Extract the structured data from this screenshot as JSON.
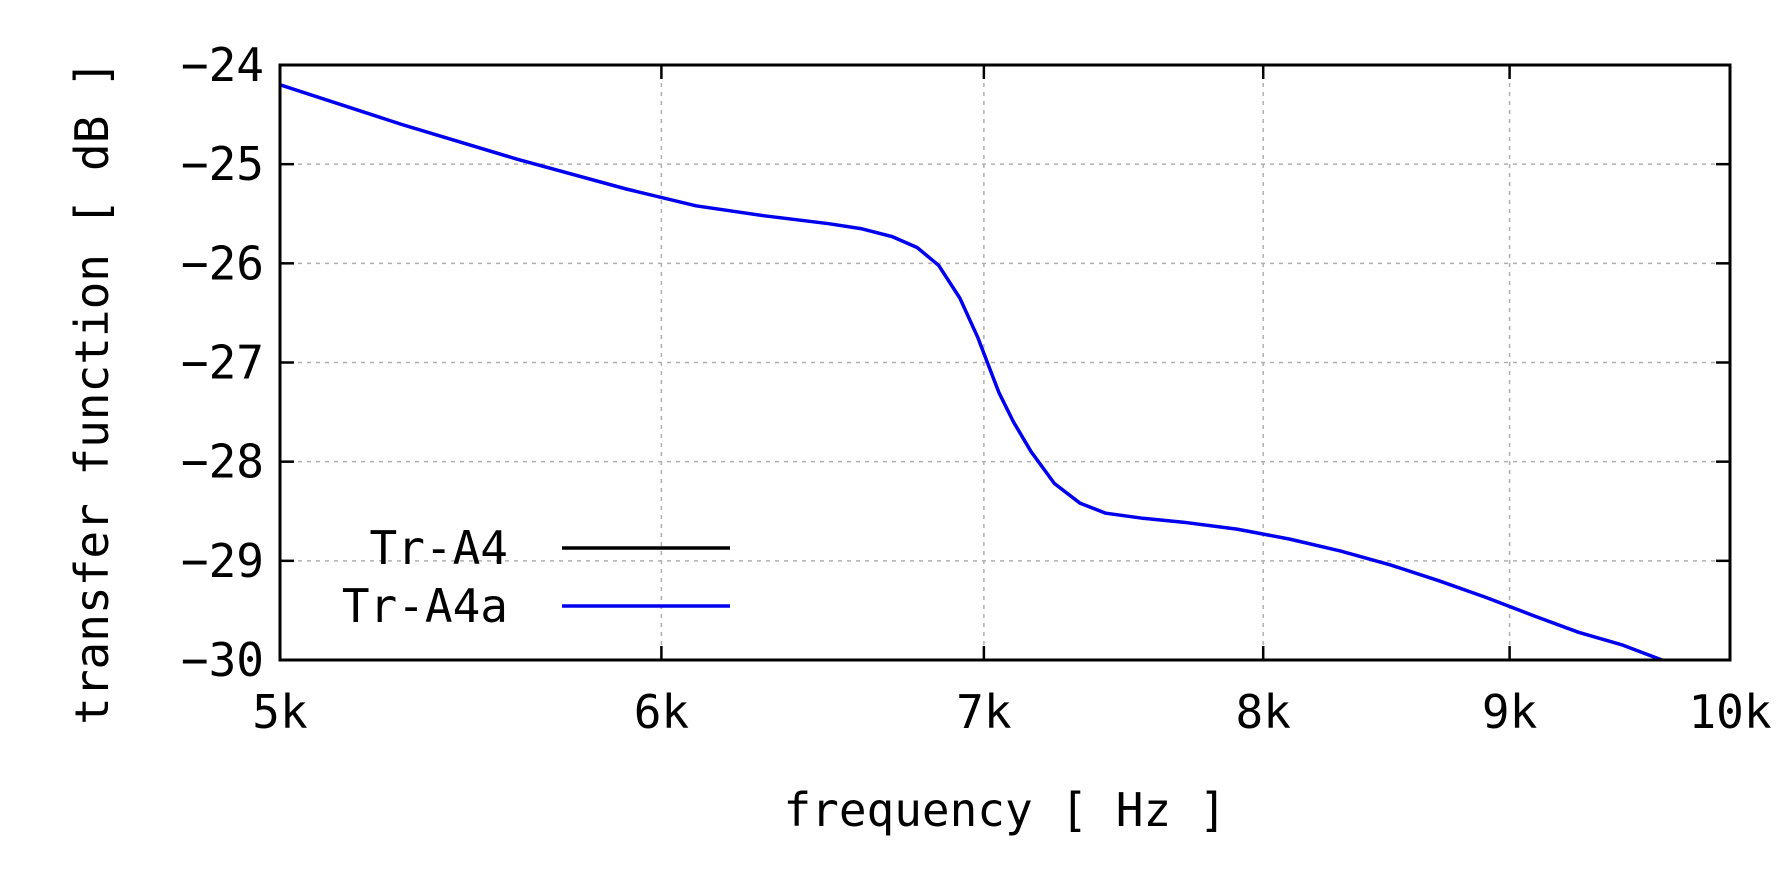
{
  "chart_data": {
    "type": "line",
    "xlabel": "frequency [ Hz ]",
    "ylabel": "transfer function [ dB ]",
    "xlim": [
      5000,
      10000
    ],
    "ylim": [
      -30,
      -24
    ],
    "x_scale": "log",
    "grid": true,
    "legend_placement": "bottom-left",
    "x_ticks": [
      {
        "value": 5000,
        "label": "5k"
      },
      {
        "value": 6000,
        "label": "6k"
      },
      {
        "value": 7000,
        "label": "7k"
      },
      {
        "value": 8000,
        "label": "8k"
      },
      {
        "value": 9000,
        "label": "9k"
      },
      {
        "value": 10000,
        "label": "10k"
      }
    ],
    "y_ticks": [
      {
        "value": -24,
        "label": "−24"
      },
      {
        "value": -25,
        "label": "−25"
      },
      {
        "value": -26,
        "label": "−26"
      },
      {
        "value": -27,
        "label": "−27"
      },
      {
        "value": -28,
        "label": "−28"
      },
      {
        "value": -29,
        "label": "−29"
      },
      {
        "value": -30,
        "label": "−30"
      }
    ],
    "series": [
      {
        "name": "Tr-A4",
        "color": "#000000",
        "x": [],
        "y": []
      },
      {
        "name": "Tr-A4a",
        "color": "#0000ee",
        "x": [
          5000,
          5300,
          5600,
          5900,
          6100,
          6300,
          6500,
          6600,
          6700,
          6780,
          6850,
          6920,
          6980,
          7050,
          7100,
          7160,
          7240,
          7330,
          7420,
          7550,
          7700,
          7900,
          8100,
          8300,
          8500,
          8700,
          8900,
          9100,
          9300,
          9500,
          9680
        ],
        "y": [
          -24.2,
          -24.6,
          -24.95,
          -25.25,
          -25.42,
          -25.52,
          -25.6,
          -25.65,
          -25.73,
          -25.84,
          -26.02,
          -26.35,
          -26.75,
          -27.3,
          -27.6,
          -27.9,
          -28.22,
          -28.42,
          -28.52,
          -28.57,
          -28.61,
          -28.68,
          -28.78,
          -28.9,
          -29.04,
          -29.2,
          -29.37,
          -29.55,
          -29.72,
          -29.85,
          -30.0
        ]
      }
    ]
  }
}
